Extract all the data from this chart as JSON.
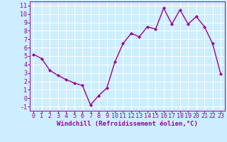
{
  "x": [
    0,
    1,
    2,
    3,
    4,
    5,
    6,
    7,
    8,
    9,
    10,
    11,
    12,
    13,
    14,
    15,
    16,
    17,
    18,
    19,
    20,
    21,
    22,
    23
  ],
  "y": [
    5.2,
    4.7,
    3.3,
    2.7,
    2.2,
    1.8,
    1.5,
    -0.8,
    0.3,
    1.2,
    4.3,
    6.5,
    7.7,
    7.3,
    8.5,
    8.2,
    10.7,
    8.8,
    10.5,
    8.8,
    9.7,
    8.5,
    6.5,
    2.9
  ],
  "line_color": "#990099",
  "marker": "D",
  "marker_size": 2.0,
  "line_width": 1.0,
  "bg_color": "#cceeff",
  "grid_color": "#ffffff",
  "xlabel": "Windchill (Refroidissement éolien,°C)",
  "xlabel_color": "#990099",
  "tick_color": "#990099",
  "xlim": [
    -0.5,
    23.5
  ],
  "ylim": [
    -1.5,
    11.5
  ],
  "yticks": [
    -1,
    0,
    1,
    2,
    3,
    4,
    5,
    6,
    7,
    8,
    9,
    10,
    11
  ],
  "xticks": [
    0,
    1,
    2,
    3,
    4,
    5,
    6,
    7,
    8,
    9,
    10,
    11,
    12,
    13,
    14,
    15,
    16,
    17,
    18,
    19,
    20,
    21,
    22,
    23
  ],
  "font_size_label": 6.5,
  "font_size_tick": 6.0
}
